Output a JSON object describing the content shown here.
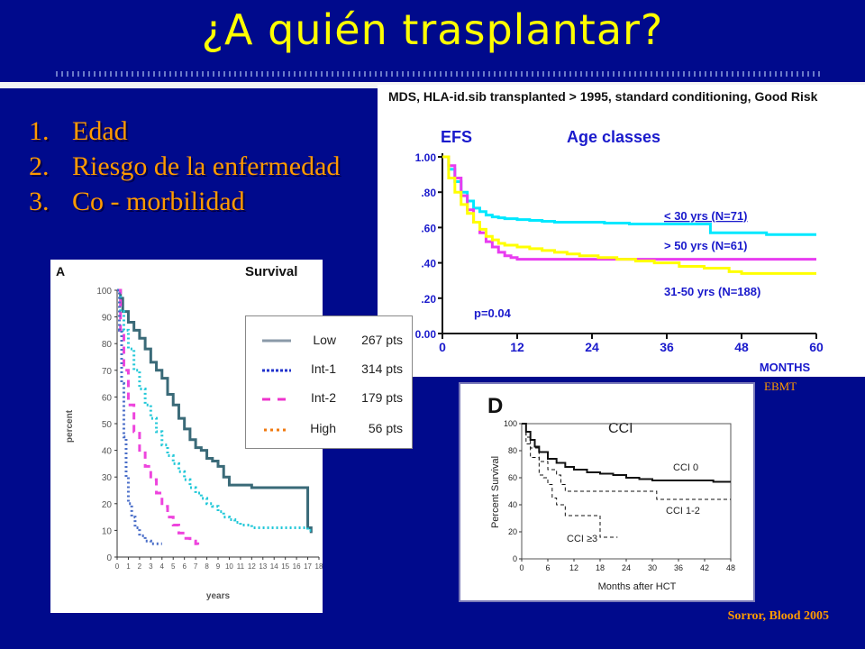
{
  "slide": {
    "title": "¿A quién trasplantar?",
    "criteria": [
      {
        "num": "1.",
        "text": "Edad"
      },
      {
        "num": "2.",
        "text": "Riesgo de la enfermedad"
      },
      {
        "num": "3.",
        "text": "Co - morbilidad"
      }
    ],
    "ebmt_tag": "EBMT",
    "sorror_caption": "Sorror, Blood 2005",
    "colors": {
      "background": "#000a8c",
      "title": "#ffff00",
      "accent": "#ff9a00"
    }
  },
  "legend": [
    {
      "name": "Low",
      "pts": "267 pts",
      "style": "solid",
      "color": "#8a9aa8"
    },
    {
      "name": "Int-1",
      "pts": "314 pts",
      "style": "dotted",
      "color": "#2233cc"
    },
    {
      "name": "Int-2",
      "pts": "179 pts",
      "style": "dashed",
      "color": "#ee33cc"
    },
    {
      "name": "High",
      "pts": "56 pts",
      "style": "dotted",
      "color": "#f07a10"
    }
  ],
  "chart_data": [
    {
      "id": "ebmt",
      "type": "line",
      "header": "MDS, HLA-id.sib transplanted > 1995, standard conditioning, Good Risk",
      "title": "EFS",
      "subtitle": "Age classes",
      "xlabel": "MONTHS",
      "ylabel": "",
      "xlim": [
        0,
        60
      ],
      "ylim": [
        0,
        1
      ],
      "x_ticks": [
        0,
        12,
        24,
        36,
        48,
        60
      ],
      "y_ticks": [
        0,
        0.2,
        0.4,
        0.6,
        0.8,
        1.0
      ],
      "y_tick_labels": [
        "0.00",
        ".20",
        ".40",
        ".60",
        ".80",
        "1.00"
      ],
      "x_tick_labels": [
        "0",
        "12",
        "24",
        "36",
        "48",
        "60"
      ],
      "annotation": "p=0.04",
      "series": [
        {
          "name": "< 30 yrs (N=71)",
          "color": "#00e8ff",
          "x": [
            0,
            1,
            2,
            3,
            4,
            5,
            6,
            7,
            8,
            9,
            10,
            12,
            14,
            16,
            18,
            22,
            26,
            30,
            36,
            42,
            43,
            52,
            60
          ],
          "y": [
            1.0,
            0.93,
            0.86,
            0.8,
            0.75,
            0.71,
            0.69,
            0.67,
            0.66,
            0.655,
            0.65,
            0.645,
            0.64,
            0.635,
            0.63,
            0.63,
            0.625,
            0.62,
            0.62,
            0.62,
            0.57,
            0.56,
            0.56
          ]
        },
        {
          "name": "> 50 yrs (N=61)",
          "color": "#e83cf0",
          "x": [
            0,
            1,
            2,
            3,
            4,
            5,
            6,
            7,
            8,
            9,
            10,
            11,
            12,
            14,
            16,
            20,
            26,
            36,
            48,
            60
          ],
          "y": [
            1.0,
            0.95,
            0.88,
            0.78,
            0.7,
            0.63,
            0.57,
            0.52,
            0.49,
            0.46,
            0.44,
            0.43,
            0.42,
            0.42,
            0.42,
            0.42,
            0.42,
            0.42,
            0.42,
            0.42
          ]
        },
        {
          "name": "31-50 yrs (N=188)",
          "color": "#ffff00",
          "x": [
            0,
            1,
            2,
            3,
            4,
            5,
            6,
            7,
            8,
            9,
            10,
            12,
            14,
            16,
            18,
            20,
            22,
            25,
            28,
            31,
            34,
            38,
            42,
            46,
            48,
            60
          ],
          "y": [
            1.0,
            0.88,
            0.8,
            0.73,
            0.68,
            0.63,
            0.59,
            0.55,
            0.53,
            0.51,
            0.5,
            0.49,
            0.48,
            0.47,
            0.46,
            0.45,
            0.44,
            0.43,
            0.42,
            0.41,
            0.4,
            0.38,
            0.37,
            0.35,
            0.34,
            0.34
          ]
        }
      ]
    },
    {
      "id": "ipss",
      "type": "line",
      "panel_label": "A",
      "title": "Survival",
      "xlabel": "years",
      "ylabel": "percent",
      "xlim": [
        0,
        18
      ],
      "ylim": [
        0,
        100
      ],
      "x_ticks": [
        0,
        1,
        2,
        3,
        4,
        5,
        6,
        7,
        8,
        9,
        10,
        11,
        12,
        13,
        14,
        15,
        16,
        17,
        18
      ],
      "y_ticks": [
        0,
        10,
        20,
        30,
        40,
        50,
        60,
        70,
        80,
        90,
        100
      ],
      "series": [
        {
          "name": "Low",
          "color": "#3a6a78",
          "style": "solid",
          "x": [
            0,
            0.3,
            0.5,
            1,
            1.5,
            2,
            2.5,
            3,
            3.5,
            4,
            4.5,
            5,
            5.5,
            6,
            6.5,
            7,
            7.5,
            8,
            8.5,
            9,
            9.5,
            10,
            11,
            12,
            13,
            14,
            15,
            16,
            17,
            17.3
          ],
          "y": [
            100,
            97,
            92,
            88,
            85,
            82,
            78,
            73,
            70,
            67,
            61,
            57,
            52,
            48,
            44,
            41,
            40,
            37,
            36,
            34,
            30,
            27,
            27,
            26,
            26,
            26,
            26,
            26,
            11,
            9
          ]
        },
        {
          "name": "Int-1",
          "color": "#22c8d8",
          "style": "dotted",
          "x": [
            0,
            0.3,
            0.6,
            1,
            1.5,
            2,
            2.5,
            3,
            3.5,
            4,
            4.5,
            5,
            5.5,
            6,
            6.5,
            7,
            7.5,
            8,
            8.5,
            9,
            9.5,
            10,
            10.5,
            11,
            12,
            13,
            14,
            15,
            16,
            17,
            17.3
          ],
          "y": [
            100,
            92,
            85,
            78,
            70,
            63,
            57,
            52,
            47,
            42,
            38,
            35,
            32,
            29,
            26,
            24,
            22,
            20,
            19,
            17,
            15,
            14,
            13,
            12,
            11,
            11,
            11,
            11,
            11,
            10,
            10
          ]
        },
        {
          "name": "Int-2",
          "color": "#ee44dd",
          "style": "dashed",
          "x": [
            0,
            0.3,
            0.6,
            1,
            1.5,
            2,
            2.5,
            3,
            3.5,
            4,
            4.5,
            5,
            5.5,
            6,
            6.5,
            7,
            7.2
          ],
          "y": [
            100,
            85,
            70,
            57,
            47,
            40,
            34,
            29,
            24,
            19,
            15,
            12,
            9,
            7,
            6,
            5,
            4
          ]
        },
        {
          "name": "High",
          "color": "#4a6ec8",
          "style": "dotted",
          "x": [
            0,
            0.2,
            0.4,
            0.6,
            0.8,
            1,
            1.3,
            1.6,
            2,
            2.5,
            3,
            3.5,
            4
          ],
          "y": [
            100,
            85,
            65,
            45,
            30,
            20,
            15,
            11,
            8,
            6,
            5,
            5,
            5
          ]
        }
      ]
    },
    {
      "id": "cci",
      "type": "line",
      "panel_label": "D",
      "title": "CCI",
      "xlabel": "Months after HCT",
      "ylabel": "Percent Survival",
      "xlim": [
        0,
        48
      ],
      "ylim": [
        0,
        100
      ],
      "x_ticks": [
        0,
        6,
        12,
        18,
        24,
        30,
        36,
        42,
        48
      ],
      "y_ticks": [
        0,
        20,
        40,
        60,
        80,
        100
      ],
      "series": [
        {
          "name": "CCI 0",
          "color": "#111111",
          "style": "solid",
          "x": [
            0,
            1,
            2,
            3,
            4,
            6,
            8,
            10,
            12,
            15,
            18,
            21,
            24,
            27,
            30,
            34,
            38,
            42,
            44,
            46,
            48
          ],
          "y": [
            100,
            94,
            88,
            83,
            79,
            74,
            71,
            68,
            66,
            64,
            63,
            62,
            60,
            59,
            58,
            58,
            58,
            58,
            57,
            57,
            57
          ]
        },
        {
          "name": "CCI 1-2",
          "color": "#111111",
          "style": "dashed",
          "x": [
            0,
            1,
            2,
            4,
            6,
            8,
            9,
            10,
            12,
            18,
            24,
            30,
            31,
            36,
            42,
            48
          ],
          "y": [
            100,
            90,
            82,
            72,
            66,
            62,
            55,
            50,
            50,
            50,
            50,
            50,
            44,
            44,
            44,
            44
          ]
        },
        {
          "name": "CCI ≥3",
          "color": "#111111",
          "style": "dashed",
          "x": [
            0,
            1,
            2,
            4,
            5,
            6,
            7,
            8,
            10,
            12,
            14,
            16,
            18,
            19,
            20,
            22
          ],
          "y": [
            100,
            85,
            75,
            62,
            60,
            55,
            45,
            40,
            32,
            32,
            32,
            32,
            16,
            16,
            16,
            16
          ]
        }
      ],
      "curve_labels": [
        "CCI 0",
        "CCI 1-2",
        "CCI ≥3"
      ]
    }
  ]
}
